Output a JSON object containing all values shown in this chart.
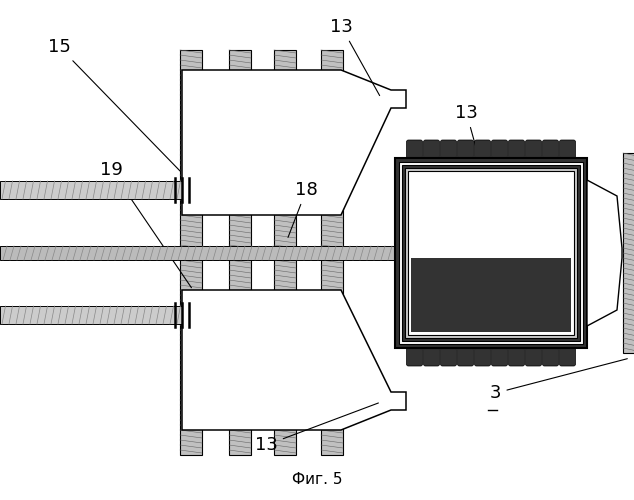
{
  "title": "Фиг. 5",
  "bg_color": "#ffffff",
  "gray_bar": "#a0a0a0",
  "gray_texture": "#888888",
  "white": "#ffffff",
  "black": "#111111"
}
